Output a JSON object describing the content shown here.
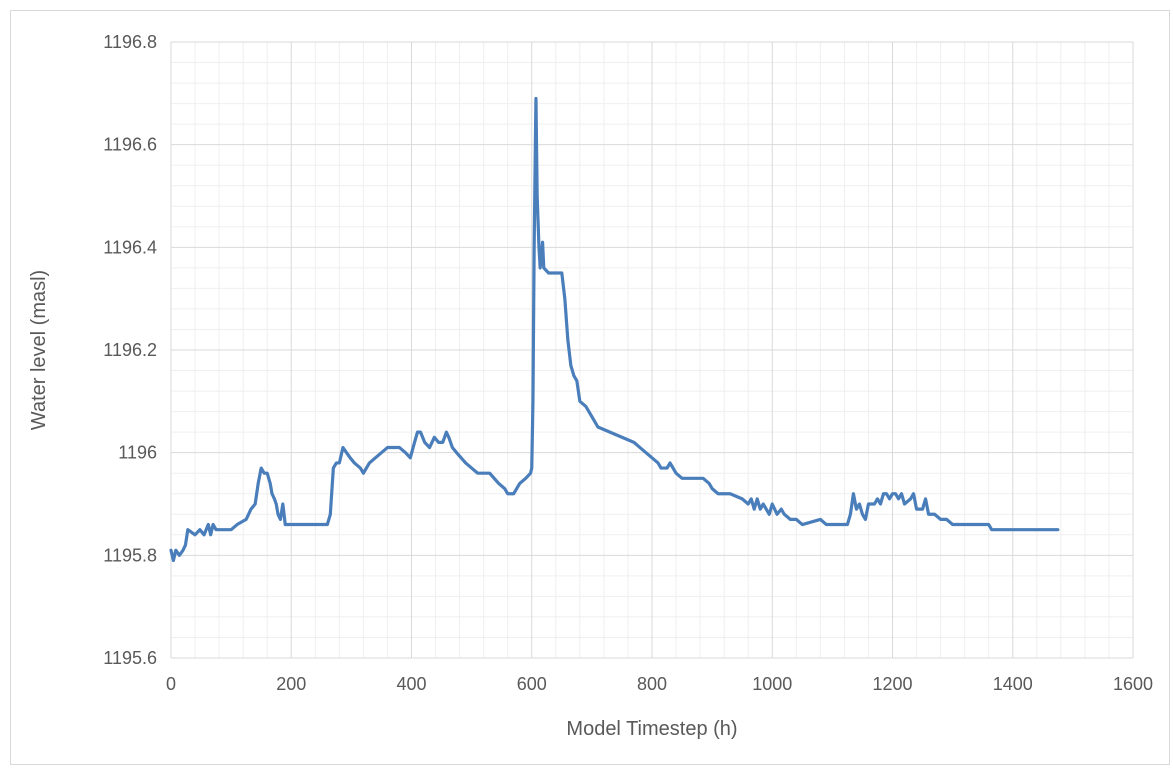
{
  "chart_data": {
    "type": "line",
    "title": "",
    "xlabel": "Model Timestep (h)",
    "ylabel": "Water level (masl)",
    "xlim": [
      0,
      1600
    ],
    "ylim": [
      1195.6,
      1196.8
    ],
    "x_ticks": [
      0,
      200,
      400,
      600,
      800,
      1000,
      1200,
      1400,
      1600
    ],
    "y_ticks": [
      1195.6,
      1195.8,
      1196,
      1196.2,
      1196.4,
      1196.6,
      1196.8
    ],
    "x_tick_labels": [
      "0",
      "200",
      "400",
      "600",
      "800",
      "1000",
      "1200",
      "1400",
      "1600"
    ],
    "y_tick_labels": [
      "1195.6",
      "1195.8",
      "1196",
      "1196.2",
      "1196.4",
      "1196.6",
      "1196.8"
    ],
    "grid": "major and minor",
    "legend": "none",
    "series": [
      {
        "color": "#4a7ebb",
        "points": [
          [
            0,
            1195.81
          ],
          [
            4,
            1195.79
          ],
          [
            8,
            1195.81
          ],
          [
            14,
            1195.8
          ],
          [
            20,
            1195.81
          ],
          [
            24,
            1195.82
          ],
          [
            28,
            1195.85
          ],
          [
            40,
            1195.84
          ],
          [
            48,
            1195.85
          ],
          [
            55,
            1195.84
          ],
          [
            62,
            1195.86
          ],
          [
            66,
            1195.84
          ],
          [
            70,
            1195.86
          ],
          [
            75,
            1195.85
          ],
          [
            80,
            1195.85
          ],
          [
            100,
            1195.85
          ],
          [
            110,
            1195.86
          ],
          [
            125,
            1195.87
          ],
          [
            133,
            1195.89
          ],
          [
            140,
            1195.9
          ],
          [
            145,
            1195.94
          ],
          [
            150,
            1195.97
          ],
          [
            155,
            1195.96
          ],
          [
            160,
            1195.96
          ],
          [
            165,
            1195.94
          ],
          [
            168,
            1195.92
          ],
          [
            172,
            1195.91
          ],
          [
            175,
            1195.9
          ],
          [
            178,
            1195.88
          ],
          [
            182,
            1195.87
          ],
          [
            186,
            1195.9
          ],
          [
            190,
            1195.86
          ],
          [
            200,
            1195.86
          ],
          [
            220,
            1195.86
          ],
          [
            240,
            1195.86
          ],
          [
            260,
            1195.86
          ],
          [
            265,
            1195.88
          ],
          [
            270,
            1195.97
          ],
          [
            275,
            1195.98
          ],
          [
            280,
            1195.98
          ],
          [
            286,
            1196.01
          ],
          [
            292,
            1196
          ],
          [
            298,
            1195.99
          ],
          [
            305,
            1195.98
          ],
          [
            315,
            1195.97
          ],
          [
            320,
            1195.96
          ],
          [
            330,
            1195.98
          ],
          [
            340,
            1195.99
          ],
          [
            350,
            1196
          ],
          [
            360,
            1196.01
          ],
          [
            370,
            1196.01
          ],
          [
            380,
            1196.01
          ],
          [
            390,
            1196
          ],
          [
            398,
            1195.99
          ],
          [
            405,
            1196.02
          ],
          [
            410,
            1196.04
          ],
          [
            415,
            1196.04
          ],
          [
            422,
            1196.02
          ],
          [
            430,
            1196.01
          ],
          [
            438,
            1196.03
          ],
          [
            445,
            1196.02
          ],
          [
            452,
            1196.02
          ],
          [
            458,
            1196.04
          ],
          [
            462,
            1196.03
          ],
          [
            468,
            1196.01
          ],
          [
            475,
            1196
          ],
          [
            490,
            1195.98
          ],
          [
            500,
            1195.97
          ],
          [
            510,
            1195.96
          ],
          [
            530,
            1195.96
          ],
          [
            545,
            1195.94
          ],
          [
            555,
            1195.93
          ],
          [
            560,
            1195.92
          ],
          [
            570,
            1195.92
          ],
          [
            580,
            1195.94
          ],
          [
            590,
            1195.95
          ],
          [
            598,
            1195.96
          ],
          [
            600,
            1195.97
          ],
          [
            602,
            1196.1
          ],
          [
            604,
            1196.4
          ],
          [
            606,
            1196.6
          ],
          [
            607,
            1196.69
          ],
          [
            609,
            1196.5
          ],
          [
            612,
            1196.4
          ],
          [
            614,
            1196.36
          ],
          [
            618,
            1196.41
          ],
          [
            620,
            1196.36
          ],
          [
            628,
            1196.35
          ],
          [
            640,
            1196.35
          ],
          [
            650,
            1196.35
          ],
          [
            655,
            1196.3
          ],
          [
            660,
            1196.22
          ],
          [
            665,
            1196.17
          ],
          [
            670,
            1196.15
          ],
          [
            675,
            1196.14
          ],
          [
            680,
            1196.1
          ],
          [
            690,
            1196.09
          ],
          [
            700,
            1196.07
          ],
          [
            710,
            1196.05
          ],
          [
            730,
            1196.04
          ],
          [
            750,
            1196.03
          ],
          [
            770,
            1196.02
          ],
          [
            780,
            1196.01
          ],
          [
            790,
            1196
          ],
          [
            800,
            1195.99
          ],
          [
            810,
            1195.98
          ],
          [
            815,
            1195.97
          ],
          [
            825,
            1195.97
          ],
          [
            830,
            1195.98
          ],
          [
            840,
            1195.96
          ],
          [
            850,
            1195.95
          ],
          [
            870,
            1195.95
          ],
          [
            885,
            1195.95
          ],
          [
            895,
            1195.94
          ],
          [
            900,
            1195.93
          ],
          [
            910,
            1195.92
          ],
          [
            930,
            1195.92
          ],
          [
            950,
            1195.91
          ],
          [
            960,
            1195.9
          ],
          [
            965,
            1195.91
          ],
          [
            970,
            1195.89
          ],
          [
            975,
            1195.91
          ],
          [
            980,
            1195.89
          ],
          [
            985,
            1195.9
          ],
          [
            995,
            1195.88
          ],
          [
            1000,
            1195.9
          ],
          [
            1008,
            1195.88
          ],
          [
            1015,
            1195.89
          ],
          [
            1020,
            1195.88
          ],
          [
            1030,
            1195.87
          ],
          [
            1040,
            1195.87
          ],
          [
            1050,
            1195.86
          ],
          [
            1080,
            1195.87
          ],
          [
            1090,
            1195.86
          ],
          [
            1120,
            1195.86
          ],
          [
            1125,
            1195.86
          ],
          [
            1130,
            1195.88
          ],
          [
            1135,
            1195.92
          ],
          [
            1140,
            1195.89
          ],
          [
            1145,
            1195.9
          ],
          [
            1150,
            1195.88
          ],
          [
            1155,
            1195.87
          ],
          [
            1160,
            1195.9
          ],
          [
            1170,
            1195.9
          ],
          [
            1175,
            1195.91
          ],
          [
            1180,
            1195.9
          ],
          [
            1185,
            1195.92
          ],
          [
            1190,
            1195.92
          ],
          [
            1195,
            1195.91
          ],
          [
            1200,
            1195.92
          ],
          [
            1205,
            1195.92
          ],
          [
            1210,
            1195.91
          ],
          [
            1215,
            1195.92
          ],
          [
            1220,
            1195.9
          ],
          [
            1230,
            1195.91
          ],
          [
            1235,
            1195.92
          ],
          [
            1240,
            1195.89
          ],
          [
            1250,
            1195.89
          ],
          [
            1255,
            1195.91
          ],
          [
            1260,
            1195.88
          ],
          [
            1270,
            1195.88
          ],
          [
            1280,
            1195.87
          ],
          [
            1290,
            1195.87
          ],
          [
            1300,
            1195.86
          ],
          [
            1360,
            1195.86
          ],
          [
            1365,
            1195.85
          ],
          [
            1400,
            1195.85
          ],
          [
            1440,
            1195.85
          ],
          [
            1475,
            1195.85
          ]
        ]
      }
    ]
  }
}
